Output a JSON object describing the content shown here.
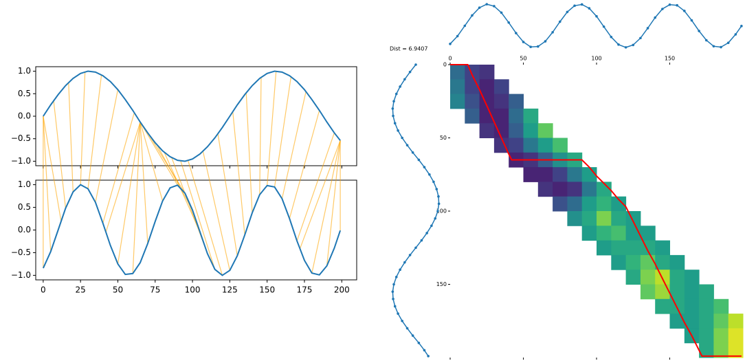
{
  "chart_data": [
    {
      "type": "line",
      "x": [
        0,
        5,
        10,
        15,
        20,
        25,
        30,
        35,
        40,
        45,
        50,
        55,
        60,
        65,
        70,
        75,
        80,
        85,
        90,
        95,
        100,
        105,
        110,
        115,
        120,
        125,
        130,
        135,
        140,
        145,
        150,
        155,
        160,
        165,
        170,
        175,
        180,
        185,
        190,
        195,
        199
      ],
      "series": [
        {
          "color": "#1f77b4",
          "values": [
            0,
            0.25,
            0.48,
            0.68,
            0.84,
            0.95,
            1,
            0.98,
            0.9,
            0.77,
            0.59,
            0.37,
            0.13,
            -0.13,
            -0.37,
            -0.59,
            -0.77,
            -0.9,
            -0.98,
            -1,
            -0.95,
            -0.84,
            -0.68,
            -0.48,
            -0.25,
            0,
            0.25,
            0.48,
            0.68,
            0.84,
            0.95,
            1,
            0.98,
            0.9,
            0.77,
            0.59,
            0.37,
            0.13,
            -0.13,
            -0.37,
            -0.54
          ]
        }
      ],
      "xlim": [
        -5,
        210
      ],
      "ylim": [
        -1.1,
        1.1
      ],
      "xticks": [
        0,
        25,
        50,
        75,
        100,
        125,
        150,
        175,
        200
      ],
      "xtick_labels": false,
      "yticks": [
        {
          "value": -1,
          "label": "−1.0"
        },
        {
          "value": -0.5,
          "label": "−0.5"
        },
        {
          "value": 0,
          "label": "0.0"
        },
        {
          "value": 0.5,
          "label": "0.5"
        },
        {
          "value": 1,
          "label": "1.0"
        }
      ]
    },
    {
      "type": "line",
      "x": [
        0,
        5,
        10,
        15,
        20,
        25,
        30,
        35,
        40,
        45,
        50,
        55,
        60,
        65,
        70,
        75,
        80,
        85,
        90,
        95,
        100,
        105,
        110,
        115,
        120,
        125,
        130,
        135,
        140,
        145,
        150,
        155,
        160,
        165,
        170,
        175,
        180,
        185,
        190,
        195,
        199
      ],
      "series": [
        {
          "color": "#1f77b4",
          "values": [
            -0.84,
            -0.48,
            0,
            0.48,
            0.84,
            1,
            0.91,
            0.61,
            0.15,
            -0.34,
            -0.75,
            -0.98,
            -0.96,
            -0.72,
            -0.3,
            0.19,
            0.64,
            0.93,
            0.99,
            0.81,
            0.44,
            -0.04,
            -0.52,
            -0.87,
            -1,
            -0.89,
            -0.57,
            -0.11,
            0.38,
            0.78,
            0.98,
            0.95,
            0.69,
            0.25,
            -0.24,
            -0.67,
            -0.95,
            -0.99,
            -0.79,
            -0.4,
            -0.01
          ]
        }
      ],
      "xlim": [
        -5,
        210
      ],
      "ylim": [
        -1.1,
        1.1
      ],
      "xticks": [
        0,
        25,
        50,
        75,
        100,
        125,
        150,
        175,
        200
      ],
      "yticks": [
        {
          "value": -1,
          "label": "−1.0"
        },
        {
          "value": -0.5,
          "label": "−0.5"
        },
        {
          "value": 0,
          "label": "0.0"
        },
        {
          "value": 0.5,
          "label": "0.5"
        },
        {
          "value": 1,
          "label": "1.0"
        }
      ]
    },
    {
      "type": "heatmap",
      "annotation": "Dist = 6.9407",
      "colormap": "viridis",
      "xlim": [
        0,
        200
      ],
      "ylim": [
        0,
        200
      ],
      "xticks": [
        0,
        50,
        100,
        150
      ],
      "yticks": [
        0,
        50,
        100,
        150
      ],
      "z": [
        [
          0.35,
          0.2,
          0.15,
          null,
          null,
          null,
          null,
          null,
          null,
          null,
          null,
          null,
          null,
          null,
          null,
          null,
          null,
          null,
          null,
          null
        ],
        [
          0.4,
          0.2,
          0.1,
          0.2,
          null,
          null,
          null,
          null,
          null,
          null,
          null,
          null,
          null,
          null,
          null,
          null,
          null,
          null,
          null,
          null
        ],
        [
          0.45,
          0.25,
          0.1,
          0.15,
          0.3,
          null,
          null,
          null,
          null,
          null,
          null,
          null,
          null,
          null,
          null,
          null,
          null,
          null,
          null,
          null
        ],
        [
          null,
          0.3,
          0.1,
          0.1,
          0.35,
          0.6,
          null,
          null,
          null,
          null,
          null,
          null,
          null,
          null,
          null,
          null,
          null,
          null,
          null,
          null
        ],
        [
          null,
          null,
          0.15,
          0.1,
          0.3,
          0.55,
          0.75,
          null,
          null,
          null,
          null,
          null,
          null,
          null,
          null,
          null,
          null,
          null,
          null,
          null
        ],
        [
          null,
          null,
          null,
          0.15,
          0.2,
          0.4,
          0.55,
          0.7,
          null,
          null,
          null,
          null,
          null,
          null,
          null,
          null,
          null,
          null,
          null,
          null
        ],
        [
          null,
          null,
          null,
          null,
          0.1,
          0.15,
          0.3,
          0.5,
          0.6,
          null,
          null,
          null,
          null,
          null,
          null,
          null,
          null,
          null,
          null,
          null
        ],
        [
          null,
          null,
          null,
          null,
          null,
          0.1,
          0.1,
          0.2,
          0.4,
          0.55,
          null,
          null,
          null,
          null,
          null,
          null,
          null,
          null,
          null,
          null
        ],
        [
          null,
          null,
          null,
          null,
          null,
          null,
          0.15,
          0.1,
          0.15,
          0.4,
          0.6,
          null,
          null,
          null,
          null,
          null,
          null,
          null,
          null,
          null
        ],
        [
          null,
          null,
          null,
          null,
          null,
          null,
          null,
          0.25,
          0.35,
          0.55,
          0.65,
          0.55,
          null,
          null,
          null,
          null,
          null,
          null,
          null,
          null
        ],
        [
          null,
          null,
          null,
          null,
          null,
          null,
          null,
          null,
          0.5,
          0.6,
          0.8,
          0.6,
          0.55,
          null,
          null,
          null,
          null,
          null,
          null,
          null
        ],
        [
          null,
          null,
          null,
          null,
          null,
          null,
          null,
          null,
          null,
          0.55,
          0.65,
          0.7,
          0.55,
          0.55,
          null,
          null,
          null,
          null,
          null,
          null
        ],
        [
          null,
          null,
          null,
          null,
          null,
          null,
          null,
          null,
          null,
          null,
          0.55,
          0.6,
          0.6,
          0.6,
          0.55,
          null,
          null,
          null,
          null,
          null
        ],
        [
          null,
          null,
          null,
          null,
          null,
          null,
          null,
          null,
          null,
          null,
          null,
          0.55,
          0.65,
          0.75,
          0.6,
          0.55,
          null,
          null,
          null,
          null
        ],
        [
          null,
          null,
          null,
          null,
          null,
          null,
          null,
          null,
          null,
          null,
          null,
          null,
          0.6,
          0.8,
          0.9,
          0.6,
          0.55,
          null,
          null,
          null
        ],
        [
          null,
          null,
          null,
          null,
          null,
          null,
          null,
          null,
          null,
          null,
          null,
          null,
          null,
          0.75,
          0.85,
          0.6,
          0.55,
          0.6,
          null,
          null
        ],
        [
          null,
          null,
          null,
          null,
          null,
          null,
          null,
          null,
          null,
          null,
          null,
          null,
          null,
          null,
          0.6,
          0.6,
          0.55,
          0.6,
          0.7,
          null
        ],
        [
          null,
          null,
          null,
          null,
          null,
          null,
          null,
          null,
          null,
          null,
          null,
          null,
          null,
          null,
          null,
          0.55,
          0.55,
          0.6,
          0.75,
          0.9
        ],
        [
          null,
          null,
          null,
          null,
          null,
          null,
          null,
          null,
          null,
          null,
          null,
          null,
          null,
          null,
          null,
          null,
          0.55,
          0.6,
          0.8,
          0.95
        ],
        [
          null,
          null,
          null,
          null,
          null,
          null,
          null,
          null,
          null,
          null,
          null,
          null,
          null,
          null,
          null,
          null,
          null,
          0.6,
          0.8,
          0.95
        ]
      ],
      "path": {
        "color": "#ff0000",
        "x": [
          0,
          5,
          12,
          15,
          20,
          25,
          30,
          35,
          40,
          42,
          50,
          60,
          70,
          80,
          90,
          95,
          100,
          105,
          110,
          115,
          120,
          125,
          130,
          135,
          140,
          145,
          150,
          155,
          160,
          165,
          170,
          172,
          180,
          190,
          199
        ],
        "y": [
          0,
          0,
          0,
          7,
          17,
          28,
          39,
          50,
          61,
          65,
          65,
          65,
          65,
          65,
          65,
          70,
          76,
          81,
          86,
          92,
          97,
          107,
          117,
          127,
          136,
          146,
          156,
          166,
          176,
          185,
          195,
          199,
          199,
          199,
          199
        ]
      }
    }
  ]
}
